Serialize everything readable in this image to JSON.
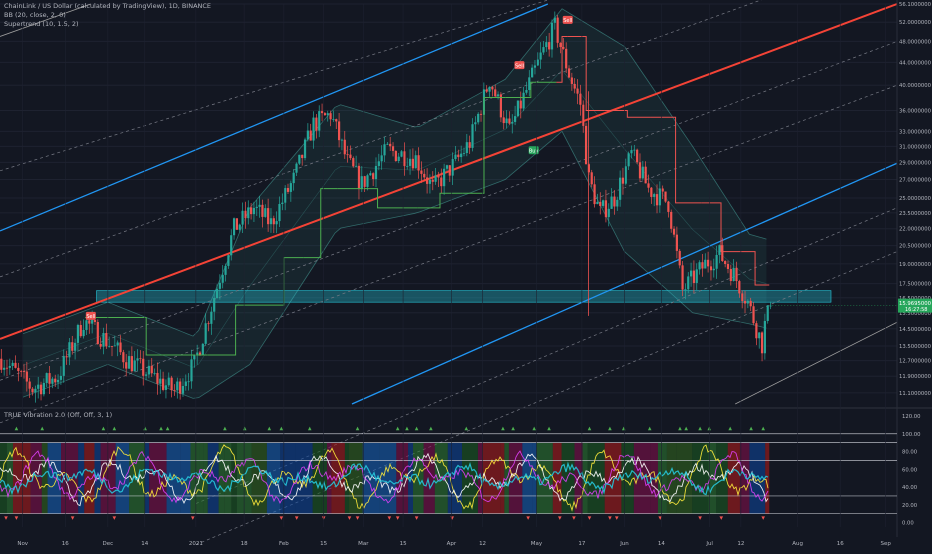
{
  "header": {
    "symbol": "ChainLink / US Dollar (calculated by TradingView), 1D, BINANCE",
    "indicator_bb": "BB (20, close, 2, 0)",
    "indicator_supertrend": "Supertrend (10, 1.5, 2)",
    "indicator_osc": "TRUE Vibration 2.0 (Off, Off, 3, 1)"
  },
  "price_axis": {
    "ticks": [
      "56.1000000",
      "52.0000000",
      "48.0000000",
      "44.0000000",
      "40.0000000",
      "36.0000000",
      "33.0000000",
      "31.0000000",
      "29.0000000",
      "27.0000000",
      "25.0000000",
      "23.5000000",
      "22.0000000",
      "20.5000000",
      "19.0000000",
      "17.5000000",
      "16.5000000",
      "15.5000000",
      "14.5000000",
      "13.5000000",
      "12.7000000",
      "11.9000000",
      "11.1000000"
    ],
    "current_price": "15.9695000",
    "current_sub": "16:27:58",
    "current_color": "#26a65b"
  },
  "osc_axis": {
    "ticks": [
      "120.00",
      "100.00",
      "80.00",
      "60.00",
      "40.00",
      "20.00",
      "0.00"
    ]
  },
  "time_axis": {
    "labels": [
      "Nov",
      "16",
      "Dec",
      "14",
      "2021",
      "18",
      "Feb",
      "15",
      "Mar",
      "15",
      "Apr",
      "12",
      "May",
      "17",
      "Jun",
      "14",
      "Jul",
      "12",
      "Aug",
      "16",
      "Sep"
    ]
  },
  "colors": {
    "background": "#131722",
    "up_candle": "#26a69a",
    "down_candle": "#ef5350",
    "channel_blue": "#2196f3",
    "channel_red": "#f44336",
    "supertrend_up": "#4caf50",
    "supertrend_down": "#ef5350",
    "bb_fill": "#2a6b66",
    "zone": "#26c6da"
  },
  "signals": {
    "sell_label": "Sell",
    "buy_label": "Buy"
  },
  "chart_data": {
    "type": "candlestick",
    "title": "ChainLink / US Dollar (calculated by TradingView), 1D, BINANCE",
    "y_scale": "log",
    "ylim": [
      10.6,
      56.1
    ],
    "x_range": [
      "2020-10-24",
      "2021-09-05"
    ],
    "price_path": [
      [
        "2020-10-25",
        12.8
      ],
      [
        "2020-11-05",
        11.3
      ],
      [
        "2020-11-14",
        11.9
      ],
      [
        "2020-11-23",
        15.0
      ],
      [
        "2020-12-01",
        13.8
      ],
      [
        "2020-12-08",
        12.8
      ],
      [
        "2020-12-15",
        12.1
      ],
      [
        "2020-12-25",
        11.2
      ],
      [
        "2021-01-01",
        12.5
      ],
      [
        "2021-01-10",
        18.0
      ],
      [
        "2021-01-15",
        22.0
      ],
      [
        "2021-01-22",
        24.0
      ],
      [
        "2021-01-28",
        22.5
      ],
      [
        "2021-02-05",
        27.0
      ],
      [
        "2021-02-12",
        34.0
      ],
      [
        "2021-02-18",
        35.5
      ],
      [
        "2021-02-24",
        29.0
      ],
      [
        "2021-03-01",
        26.5
      ],
      [
        "2021-03-10",
        30.5
      ],
      [
        "2021-03-20",
        29.5
      ],
      [
        "2021-03-26",
        26.0
      ],
      [
        "2021-04-03",
        29.0
      ],
      [
        "2021-04-08",
        31.5
      ],
      [
        "2021-04-15",
        41.0
      ],
      [
        "2021-04-22",
        33.0
      ],
      [
        "2021-04-27",
        38.0
      ],
      [
        "2021-05-03",
        45.0
      ],
      [
        "2021-05-08",
        51.0
      ],
      [
        "2021-05-13",
        42.0
      ],
      [
        "2021-05-17",
        37.0
      ],
      [
        "2021-05-20",
        27.0
      ],
      [
        "2021-05-24",
        23.5
      ],
      [
        "2021-05-29",
        25.0
      ],
      [
        "2021-06-04",
        30.0
      ],
      [
        "2021-06-10",
        26.0
      ],
      [
        "2021-06-17",
        24.5
      ],
      [
        "2021-06-22",
        17.0
      ],
      [
        "2021-06-30",
        19.0
      ],
      [
        "2021-07-05",
        19.8
      ],
      [
        "2021-07-10",
        18.2
      ],
      [
        "2021-07-15",
        16.2
      ],
      [
        "2021-07-20",
        13.6
      ],
      [
        "2021-07-22",
        15.9695
      ]
    ],
    "supertrend": [
      [
        "2020-11-23",
        15.2,
        "down"
      ],
      [
        "2021-01-05",
        13.0,
        "up"
      ],
      [
        "2021-01-25",
        16.0,
        "up"
      ],
      [
        "2021-02-08",
        19.5,
        "up"
      ],
      [
        "2021-02-20",
        26.0,
        "up"
      ],
      [
        "2021-03-20",
        24.0,
        "up"
      ],
      [
        "2021-04-05",
        25.5,
        "up"
      ],
      [
        "2021-04-20",
        38.0,
        "up"
      ],
      [
        "2021-05-08",
        40.5,
        "up"
      ],
      [
        "2021-05-12",
        49.0,
        "down"
      ],
      [
        "2021-05-25",
        36.0,
        "down"
      ],
      [
        "2021-06-10",
        35.0,
        "down"
      ],
      [
        "2021-06-28",
        24.5,
        "down"
      ],
      [
        "2021-07-12",
        20.0,
        "down"
      ],
      [
        "2021-07-22",
        17.4,
        "down"
      ]
    ],
    "bollinger_upper": [
      [
        "2020-11-01",
        14.2
      ],
      [
        "2020-12-01",
        16.2
      ],
      [
        "2021-01-01",
        14.0
      ],
      [
        "2021-01-20",
        24.0
      ],
      [
        "2021-02-20",
        37.0
      ],
      [
        "2021-03-20",
        33.5
      ],
      [
        "2021-04-20",
        41.0
      ],
      [
        "2021-05-10",
        55.0
      ],
      [
        "2021-06-01",
        47.0
      ],
      [
        "2021-06-25",
        31.0
      ],
      [
        "2021-07-15",
        21.5
      ],
      [
        "2021-07-22",
        21.0
      ]
    ],
    "bollinger_lower": [
      [
        "2020-11-01",
        10.9
      ],
      [
        "2020-12-01",
        12.5
      ],
      [
        "2021-01-01",
        10.8
      ],
      [
        "2021-01-20",
        12.5
      ],
      [
        "2021-02-20",
        22.0
      ],
      [
        "2021-03-20",
        23.5
      ],
      [
        "2021-04-20",
        27.0
      ],
      [
        "2021-05-10",
        33.0
      ],
      [
        "2021-06-01",
        20.0
      ],
      [
        "2021-06-25",
        15.5
      ],
      [
        "2021-07-15",
        14.8
      ],
      [
        "2021-07-22",
        14.5
      ]
    ],
    "channel_blue_upper": [
      [
        "2020-10-24",
        21.8
      ],
      [
        "2021-05-05",
        56.1
      ]
    ],
    "channel_blue_lower": [
      [
        "2021-02-25",
        10.6
      ],
      [
        "2021-09-05",
        28.9
      ]
    ],
    "channel_red_mid": [
      [
        "2020-10-24",
        13.9
      ],
      [
        "2021-09-05",
        56.1
      ]
    ],
    "channel_grey_upper": [
      [
        "2020-10-24",
        49.0
      ],
      [
        "2020-11-25",
        56.1
      ]
    ],
    "channel_grey_lower": [
      [
        "2021-07-10",
        10.6
      ],
      [
        "2021-09-05",
        14.9
      ]
    ],
    "support_zone": [
      16.2,
      17.0
    ],
    "sell_signals": [
      [
        "2020-11-25",
        15.3
      ],
      [
        "2021-04-25",
        43.5
      ],
      [
        "2021-05-12",
        52.5
      ]
    ],
    "buy_signals": [
      [
        "2021-04-30",
        30.5
      ]
    ],
    "oscillator": {
      "ylim": [
        -5,
        120
      ],
      "levels": [
        100,
        90,
        70,
        30,
        10
      ],
      "series": [
        {
          "name": "fast",
          "color": "#ffeb3b"
        },
        {
          "name": "mid",
          "color": "#ffffff"
        },
        {
          "name": "slow",
          "color": "#e040fb"
        },
        {
          "name": "trend",
          "color": "#26c6da"
        }
      ]
    }
  }
}
